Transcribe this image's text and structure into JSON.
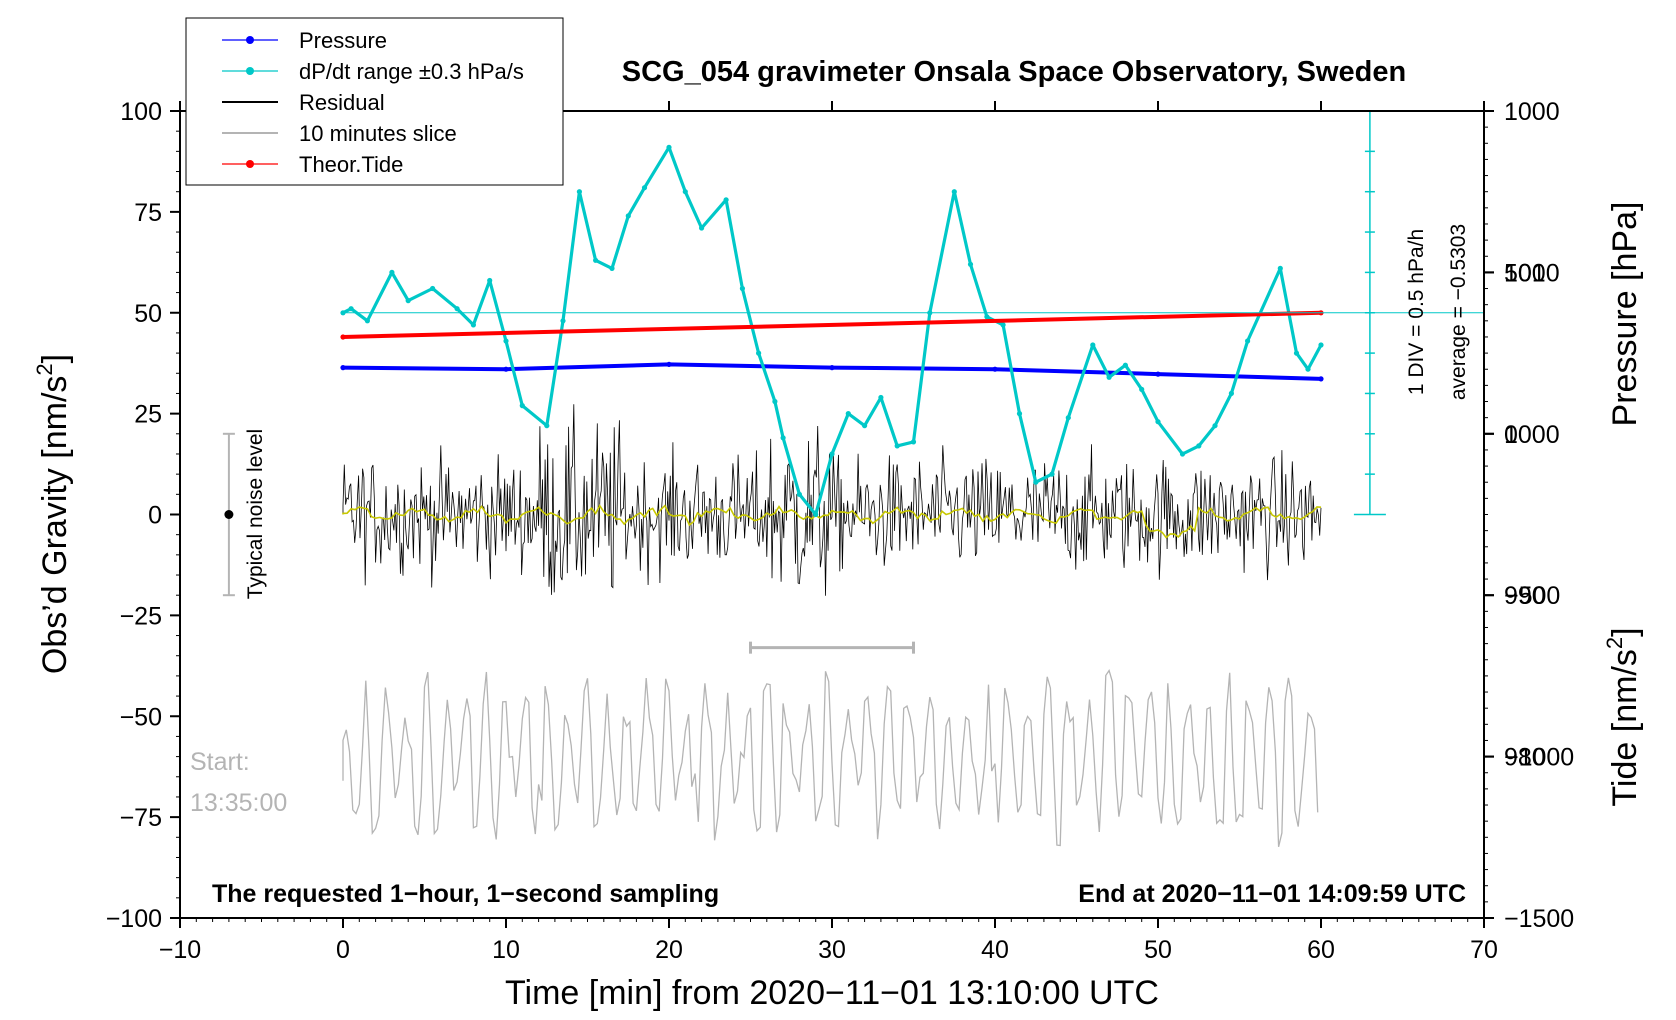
{
  "chart_data": {
    "type": "line",
    "title": "SCG_054 gravimeter Onsala Space Observatory, Sweden",
    "xlabel": "Time [min] from 2020−11−01 13:10:00 UTC",
    "ylabel_left": "Obs’d Gravity [nm/s²]",
    "ylabel_left_base": "Obs’d Gravity [nm/s",
    "ylabel_right_pressure": "Pressure [hPa]",
    "ylabel_right_tide": "Tide [nm/s²]",
    "ylabel_right_tide_base": "Tide [nm/s",
    "superscript": "2",
    "closing_bracket": "]",
    "xlim": [
      -10,
      70
    ],
    "ylim_gravity": [
      -100,
      100
    ],
    "ylim_pressure": [
      970,
      1020
    ],
    "ylim_tide": [
      -1500,
      1000
    ],
    "x_ticks": [
      "−10",
      "0",
      "10",
      "20",
      "30",
      "40",
      "50",
      "60",
      "70"
    ],
    "x_tick_values": [
      -10,
      0,
      10,
      20,
      30,
      40,
      50,
      60,
      70
    ],
    "y_ticks_gravity": [
      "100",
      "75",
      "50",
      "25",
      "0",
      "−25",
      "−50",
      "−75",
      "−100"
    ],
    "y_tick_values_gravity": [
      100,
      75,
      50,
      25,
      0,
      -25,
      -50,
      -75,
      -100
    ],
    "y_ticks_pressure": [
      "1010",
      "1000",
      "990",
      "980"
    ],
    "y_tick_values_pressure": [
      1010,
      1000,
      990,
      980
    ],
    "y_ticks_tide": [
      "1000",
      "500",
      "0",
      "−500",
      "−1000",
      "−1500"
    ],
    "y_tick_values_tide": [
      1000,
      500,
      0,
      -500,
      -1000,
      -1500
    ],
    "legend": [
      {
        "label": "Pressure",
        "color": "#0000ff",
        "marker": true
      },
      {
        "label": "dP/dt range ±0.3 hPa/s",
        "color": "#00c8c8",
        "marker": true
      },
      {
        "label": "Residual",
        "color": "#000000",
        "marker": false
      },
      {
        "label": "10 minutes slice",
        "color": "#b4b4b4",
        "marker": false
      },
      {
        "label": "Theor.Tide",
        "color": "#ff0000",
        "marker": true
      }
    ],
    "annotations": {
      "bottom_left": "The requested 1−hour, 1−second sampling",
      "bottom_right": "End at 2020−11−01 14:09:59 UTC",
      "start_label": "Start:",
      "start_time": "13:35:00",
      "noise_label": "Typical noise level",
      "div_label": "1 DIV = 0.5 hPa/h",
      "average_label": "average = −0.5303"
    },
    "noise_bar": {
      "x": -7,
      "center": 0,
      "half_range": 20
    },
    "slice_bracket": {
      "x_start": 25,
      "x_end": 35,
      "y": -33
    },
    "dpdt_reference": {
      "x": 63,
      "top": 100,
      "bottom": 0,
      "line_y": 50,
      "div_step": 10
    },
    "series": [
      {
        "name": "Pressure",
        "axis": "pressure",
        "color": "#0000ff",
        "x": [
          0,
          10,
          20,
          30,
          40,
          50,
          60
        ],
        "values": [
          1004.1,
          1004.0,
          1004.3,
          1004.1,
          1004.0,
          1003.7,
          1003.4
        ]
      },
      {
        "name": "dP/dt range ±0.3 hPa/s",
        "axis": "gravity",
        "color": "#00c8c8",
        "x": [
          0,
          0.5,
          1.5,
          3,
          4,
          5.5,
          7,
          8,
          9,
          10,
          11,
          12.5,
          13.5,
          14.5,
          15.5,
          16.5,
          17.5,
          18.5,
          20,
          21,
          22,
          23.5,
          24.5,
          25.5,
          26.5,
          27,
          28,
          29,
          30,
          31,
          32,
          33,
          34,
          35,
          36,
          37.5,
          38.5,
          39.5,
          40.5,
          41.5,
          42.5,
          43.5,
          44.5,
          46,
          47,
          48,
          49,
          50,
          51.5,
          52.5,
          53.5,
          54.5,
          55.5,
          57.5,
          58.5,
          59.2,
          60
        ],
        "values": [
          50,
          51,
          48,
          60,
          53,
          56,
          51,
          47,
          58,
          43,
          27,
          22,
          48,
          80,
          63,
          61,
          74,
          81,
          91,
          80,
          71,
          78,
          56,
          40,
          28,
          19,
          5,
          0,
          15,
          25,
          22,
          29,
          17,
          18,
          50,
          80,
          62,
          49,
          47,
          25,
          8,
          10,
          24,
          42,
          34,
          37,
          31,
          23,
          15,
          17,
          22,
          30,
          43,
          61,
          40,
          36,
          42
        ]
      },
      {
        "name": "Theor.Tide",
        "axis": "tide",
        "color": "#ff0000",
        "x": [
          0,
          60
        ],
        "values": [
          300,
          375
        ]
      }
    ]
  }
}
